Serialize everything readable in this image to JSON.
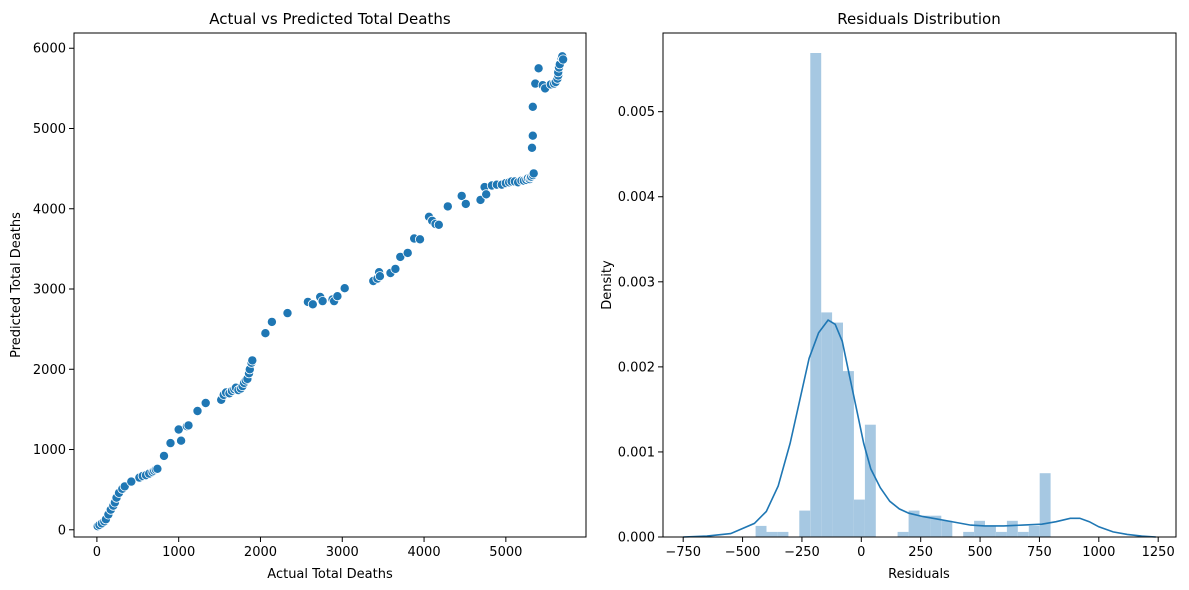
{
  "chart_data": [
    {
      "type": "scatter",
      "title": "Actual vs Predicted Total Deaths",
      "xlabel": "Actual Total Deaths",
      "ylabel": "Predicted Total Deaths",
      "xlim": [
        -280,
        5980
      ],
      "ylim": [
        -90,
        6190
      ],
      "xticks": [
        0,
        1000,
        2000,
        3000,
        4000,
        5000
      ],
      "yticks": [
        0,
        1000,
        2000,
        3000,
        4000,
        5000,
        6000
      ],
      "grid": false,
      "color": "#1f77b4",
      "points": [
        [
          10,
          45
        ],
        [
          30,
          60
        ],
        [
          60,
          80
        ],
        [
          90,
          105
        ],
        [
          110,
          130
        ],
        [
          140,
          190
        ],
        [
          170,
          250
        ],
        [
          200,
          300
        ],
        [
          220,
          340
        ],
        [
          240,
          400
        ],
        [
          270,
          460
        ],
        [
          310,
          510
        ],
        [
          340,
          540
        ],
        [
          420,
          600
        ],
        [
          520,
          650
        ],
        [
          560,
          670
        ],
        [
          600,
          680
        ],
        [
          640,
          700
        ],
        [
          680,
          720
        ],
        [
          700,
          735
        ],
        [
          720,
          750
        ],
        [
          740,
          760
        ],
        [
          820,
          920
        ],
        [
          900,
          1080
        ],
        [
          1000,
          1250
        ],
        [
          1030,
          1110
        ],
        [
          1100,
          1290
        ],
        [
          1120,
          1300
        ],
        [
          1230,
          1480
        ],
        [
          1330,
          1580
        ],
        [
          1520,
          1620
        ],
        [
          1550,
          1680
        ],
        [
          1580,
          1710
        ],
        [
          1620,
          1700
        ],
        [
          1650,
          1730
        ],
        [
          1680,
          1750
        ],
        [
          1700,
          1770
        ],
        [
          1730,
          1740
        ],
        [
          1760,
          1760
        ],
        [
          1780,
          1790
        ],
        [
          1800,
          1830
        ],
        [
          1820,
          1860
        ],
        [
          1840,
          1880
        ],
        [
          1860,
          1950
        ],
        [
          1870,
          2000
        ],
        [
          1890,
          2080
        ],
        [
          1900,
          2110
        ],
        [
          2060,
          2450
        ],
        [
          2140,
          2590
        ],
        [
          2330,
          2700
        ],
        [
          2580,
          2840
        ],
        [
          2640,
          2810
        ],
        [
          2730,
          2900
        ],
        [
          2760,
          2850
        ],
        [
          2880,
          2870
        ],
        [
          2900,
          2850
        ],
        [
          2940,
          2910
        ],
        [
          3030,
          3010
        ],
        [
          3380,
          3100
        ],
        [
          3430,
          3130
        ],
        [
          3450,
          3210
        ],
        [
          3460,
          3160
        ],
        [
          3590,
          3200
        ],
        [
          3650,
          3250
        ],
        [
          3710,
          3400
        ],
        [
          3800,
          3450
        ],
        [
          3880,
          3630
        ],
        [
          3950,
          3620
        ],
        [
          4060,
          3900
        ],
        [
          4100,
          3850
        ],
        [
          4140,
          3810
        ],
        [
          4180,
          3800
        ],
        [
          4290,
          4030
        ],
        [
          4460,
          4160
        ],
        [
          4510,
          4060
        ],
        [
          4690,
          4110
        ],
        [
          4740,
          4270
        ],
        [
          4760,
          4180
        ],
        [
          4830,
          4290
        ],
        [
          4890,
          4300
        ],
        [
          4950,
          4300
        ],
        [
          5000,
          4320
        ],
        [
          5040,
          4330
        ],
        [
          5070,
          4340
        ],
        [
          5110,
          4340
        ],
        [
          5150,
          4330
        ],
        [
          5190,
          4350
        ],
        [
          5220,
          4350
        ],
        [
          5250,
          4360
        ],
        [
          5270,
          4380
        ],
        [
          5290,
          4370
        ],
        [
          5300,
          4390
        ],
        [
          5310,
          4400
        ],
        [
          5330,
          4420
        ],
        [
          5340,
          4440
        ],
        [
          5320,
          4760
        ],
        [
          5330,
          4910
        ],
        [
          5330,
          5270
        ],
        [
          5360,
          5560
        ],
        [
          5400,
          5750
        ],
        [
          5450,
          5540
        ],
        [
          5480,
          5500
        ],
        [
          5550,
          5550
        ],
        [
          5590,
          5560
        ],
        [
          5610,
          5580
        ],
        [
          5630,
          5620
        ],
        [
          5640,
          5660
        ],
        [
          5640,
          5700
        ],
        [
          5650,
          5760
        ],
        [
          5660,
          5800
        ],
        [
          5680,
          5880
        ],
        [
          5690,
          5900
        ],
        [
          5700,
          5860
        ]
      ]
    },
    {
      "type": "histogram",
      "title": "Residuals Distribution",
      "xlabel": "Residuals",
      "ylabel": "Density",
      "xlim": [
        -835,
        1325
      ],
      "ylim": [
        0,
        0.005925
      ],
      "xticks": [
        -750,
        -500,
        -250,
        0,
        250,
        500,
        750,
        1000,
        1250
      ],
      "yticks": [
        0.0,
        0.001,
        0.002,
        0.003,
        0.004,
        0.005
      ],
      "ytick_labels": [
        "0.000",
        "0.001",
        "0.002",
        "0.003",
        "0.004",
        "0.005"
      ],
      "grid": false,
      "bar_color": "#a6c8e2",
      "line_color": "#1f77b4",
      "bin_width": 46,
      "bins": [
        {
          "x0": -445,
          "density": 0.00013
        },
        {
          "x0": -399,
          "density": 6e-05
        },
        {
          "x0": -353,
          "density": 6e-05
        },
        {
          "x0": -307,
          "density": 0.0
        },
        {
          "x0": -261,
          "density": 0.00031
        },
        {
          "x0": -215,
          "density": 0.00569
        },
        {
          "x0": -169,
          "density": 0.00264
        },
        {
          "x0": -123,
          "density": 0.00252
        },
        {
          "x0": -77,
          "density": 0.00195
        },
        {
          "x0": -31,
          "density": 0.00044
        },
        {
          "x0": 15,
          "density": 0.00132
        },
        {
          "x0": 61,
          "density": 0.0
        },
        {
          "x0": 107,
          "density": 0.0
        },
        {
          "x0": 153,
          "density": 6e-05
        },
        {
          "x0": 199,
          "density": 0.00031
        },
        {
          "x0": 245,
          "density": 0.00025
        },
        {
          "x0": 291,
          "density": 0.00025
        },
        {
          "x0": 337,
          "density": 0.00019
        },
        {
          "x0": 383,
          "density": 0.0
        },
        {
          "x0": 429,
          "density": 6e-05
        },
        {
          "x0": 475,
          "density": 0.00019
        },
        {
          "x0": 521,
          "density": 0.00013
        },
        {
          "x0": 567,
          "density": 6e-05
        },
        {
          "x0": 613,
          "density": 0.00019
        },
        {
          "x0": 659,
          "density": 6e-05
        },
        {
          "x0": 705,
          "density": 0.00013
        },
        {
          "x0": 751,
          "density": 0.00075
        }
      ],
      "kde": [
        [
          -750,
          0.0
        ],
        [
          -650,
          1e-05
        ],
        [
          -550,
          4e-05
        ],
        [
          -450,
          0.00016
        ],
        [
          -400,
          0.0003
        ],
        [
          -350,
          0.0006
        ],
        [
          -300,
          0.0011
        ],
        [
          -260,
          0.0016
        ],
        [
          -220,
          0.0021
        ],
        [
          -180,
          0.0024
        ],
        [
          -140,
          0.00255
        ],
        [
          -110,
          0.0025
        ],
        [
          -80,
          0.0023
        ],
        [
          -50,
          0.0019
        ],
        [
          -20,
          0.0015
        ],
        [
          10,
          0.0011
        ],
        [
          40,
          0.0008
        ],
        [
          80,
          0.00058
        ],
        [
          120,
          0.00042
        ],
        [
          160,
          0.00033
        ],
        [
          200,
          0.00028
        ],
        [
          260,
          0.00024
        ],
        [
          320,
          0.00021
        ],
        [
          400,
          0.00017
        ],
        [
          460,
          0.00014
        ],
        [
          520,
          0.00013
        ],
        [
          600,
          0.00013
        ],
        [
          680,
          0.00014
        ],
        [
          760,
          0.00015
        ],
        [
          820,
          0.00018
        ],
        [
          880,
          0.00022
        ],
        [
          920,
          0.00022
        ],
        [
          960,
          0.00018
        ],
        [
          1000,
          0.00012
        ],
        [
          1060,
          6e-05
        ],
        [
          1120,
          3e-05
        ],
        [
          1180,
          1e-05
        ],
        [
          1240,
          0.0
        ]
      ]
    }
  ]
}
